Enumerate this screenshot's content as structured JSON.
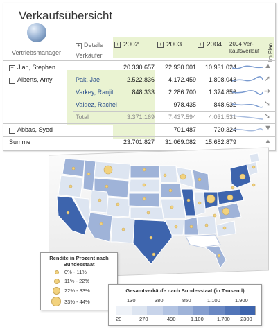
{
  "report": {
    "title": "Verkaufsübersicht",
    "manager_label": "Vertriebsmanager",
    "details_label": "Details",
    "seller_label": "Verkäufer",
    "years": [
      "2002",
      "2003",
      "2004"
    ],
    "trend_label_line1": "2004 Ver-",
    "trend_label_line2": "kaufsverlauf",
    "plan_label": "Im Plan",
    "rows": [
      {
        "name": "Jian, Stephen",
        "values": [
          "20.330.657",
          "22.930.001",
          "10.931.024"
        ]
      },
      {
        "name": "Alberts, Amy",
        "seller": "Pak, Jae",
        "values": [
          "2.522.836",
          "4.172.459",
          "1.808.043"
        ]
      },
      {
        "seller": "Varkey, Ranjit",
        "values": [
          "848.333",
          "2.286.700",
          "1.374.856"
        ]
      },
      {
        "seller": "Valdez, Rachel",
        "values": [
          "",
          "978.435",
          "848.632"
        ]
      },
      {
        "seller": "Total",
        "values": [
          "3.371.169",
          "7.437.594",
          "4.031.531"
        ]
      },
      {
        "name": "Abbas, Syed",
        "values": [
          "",
          "701.487",
          "720.324"
        ]
      },
      {
        "name": "Summe",
        "values": [
          "23.701.827",
          "31.069.082",
          "15.682.879"
        ]
      }
    ],
    "expand_symbol": "+",
    "collapse_symbol": "−"
  },
  "map": {
    "legend_rendite_title": "Rendite in Prozent nach Bundesstaat",
    "legend_rendite_items": [
      "0% - 11%",
      "11% - 22%",
      "22% - 33%",
      "33% - 44%"
    ],
    "legend_sales_title": "Gesamtverkäufe nach Bundesstaat (in Tausend)",
    "legend_sales_top": [
      "130",
      "380",
      "850",
      "1.100",
      "1.900"
    ],
    "legend_sales_bottom": [
      "20",
      "270",
      "490",
      "1.100",
      "1.700",
      "2300"
    ],
    "colors": {
      "light": "#dde5f1",
      "mid": "#9fb3d8",
      "dark": "#3d64ad",
      "bubble": "#f2d27e"
    }
  }
}
